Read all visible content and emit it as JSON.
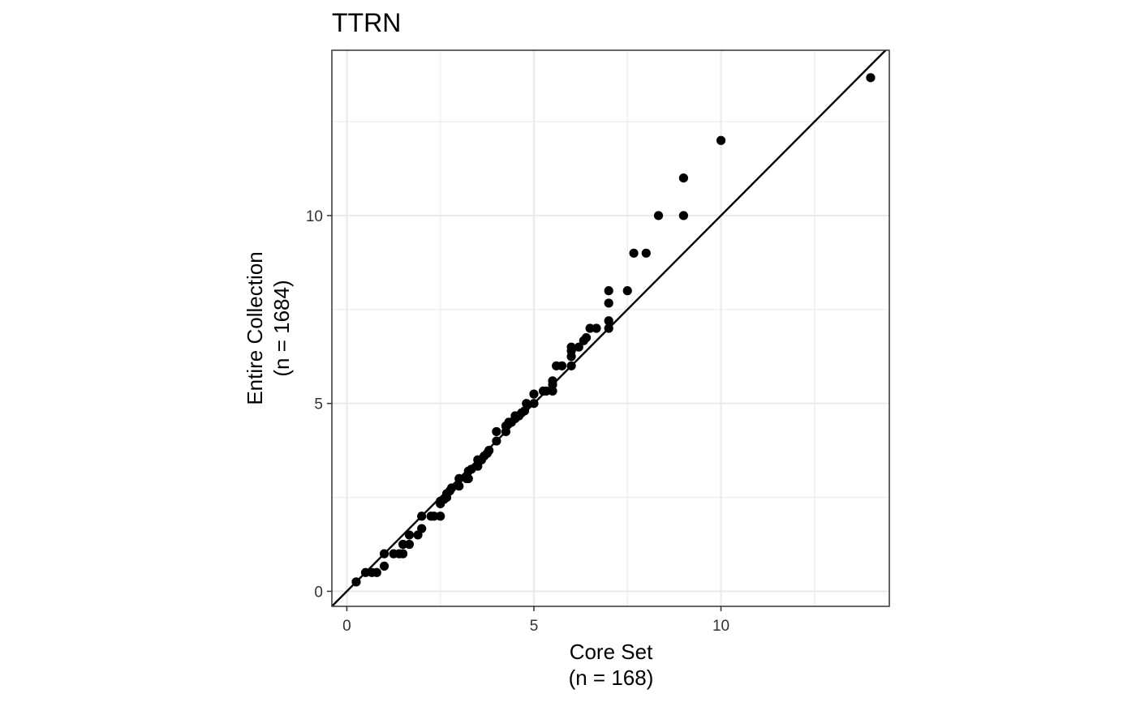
{
  "chart_data": {
    "type": "scatter",
    "title": "TTRN",
    "xlabel": "Core Set",
    "xlabel_sub": "(n = 168)",
    "ylabel": "Entire Collection",
    "ylabel_sub": "(n = 1684)",
    "xlim": [
      -0.4,
      14.5
    ],
    "ylim": [
      -0.4,
      14.4
    ],
    "x_ticks": [
      0,
      5,
      10
    ],
    "y_ticks": [
      0,
      5,
      10
    ],
    "x_minor": [
      2.5,
      7.5,
      12.5
    ],
    "y_minor": [
      2.5,
      7.5,
      12.5
    ],
    "grid": true,
    "reference_line": "y = x",
    "colors": {
      "points": "#000000",
      "line": "#000000",
      "grid": "#ebebeb",
      "panel_border": "#333333"
    },
    "points": [
      [
        0.25,
        0.25
      ],
      [
        0.5,
        0.5
      ],
      [
        0.67,
        0.5
      ],
      [
        0.8,
        0.5
      ],
      [
        1.0,
        0.67
      ],
      [
        1.0,
        1.0
      ],
      [
        1.25,
        1.0
      ],
      [
        1.4,
        1.0
      ],
      [
        1.5,
        1.0
      ],
      [
        1.5,
        1.25
      ],
      [
        1.67,
        1.25
      ],
      [
        1.67,
        1.5
      ],
      [
        1.9,
        1.5
      ],
      [
        2.0,
        1.67
      ],
      [
        2.0,
        2.0
      ],
      [
        2.25,
        2.0
      ],
      [
        2.33,
        2.0
      ],
      [
        2.5,
        2.0
      ],
      [
        2.5,
        2.33
      ],
      [
        2.5,
        2.4
      ],
      [
        2.6,
        2.45
      ],
      [
        2.67,
        2.5
      ],
      [
        2.67,
        2.6
      ],
      [
        2.75,
        2.67
      ],
      [
        2.8,
        2.75
      ],
      [
        3.0,
        2.8
      ],
      [
        3.0,
        3.0
      ],
      [
        3.2,
        3.0
      ],
      [
        3.25,
        3.0
      ],
      [
        3.25,
        3.2
      ],
      [
        3.33,
        3.25
      ],
      [
        3.5,
        3.33
      ],
      [
        3.5,
        3.5
      ],
      [
        3.6,
        3.5
      ],
      [
        3.67,
        3.6
      ],
      [
        3.75,
        3.67
      ],
      [
        3.8,
        3.75
      ],
      [
        4.0,
        4.0
      ],
      [
        4.0,
        4.25
      ],
      [
        4.25,
        4.25
      ],
      [
        4.25,
        4.4
      ],
      [
        4.33,
        4.5
      ],
      [
        4.4,
        4.5
      ],
      [
        4.5,
        4.6
      ],
      [
        4.5,
        4.67
      ],
      [
        4.6,
        4.67
      ],
      [
        4.67,
        4.75
      ],
      [
        4.75,
        4.8
      ],
      [
        4.8,
        5.0
      ],
      [
        5.0,
        5.0
      ],
      [
        5.0,
        5.25
      ],
      [
        5.25,
        5.33
      ],
      [
        5.33,
        5.33
      ],
      [
        5.5,
        5.33
      ],
      [
        5.5,
        5.5
      ],
      [
        5.5,
        5.6
      ],
      [
        5.6,
        6.0
      ],
      [
        5.75,
        6.0
      ],
      [
        6.0,
        6.0
      ],
      [
        6.0,
        6.25
      ],
      [
        6.0,
        6.4
      ],
      [
        6.0,
        6.5
      ],
      [
        6.2,
        6.5
      ],
      [
        6.33,
        6.67
      ],
      [
        6.4,
        6.75
      ],
      [
        6.5,
        7.0
      ],
      [
        6.67,
        7.0
      ],
      [
        7.0,
        7.0
      ],
      [
        7.0,
        7.2
      ],
      [
        7.0,
        7.67
      ],
      [
        7.0,
        8.0
      ],
      [
        7.5,
        8.0
      ],
      [
        7.67,
        9.0
      ],
      [
        8.0,
        9.0
      ],
      [
        8.33,
        10.0
      ],
      [
        9.0,
        10.0
      ],
      [
        9.0,
        11.0
      ],
      [
        10.0,
        12.0
      ],
      [
        14.0,
        13.67
      ]
    ]
  }
}
